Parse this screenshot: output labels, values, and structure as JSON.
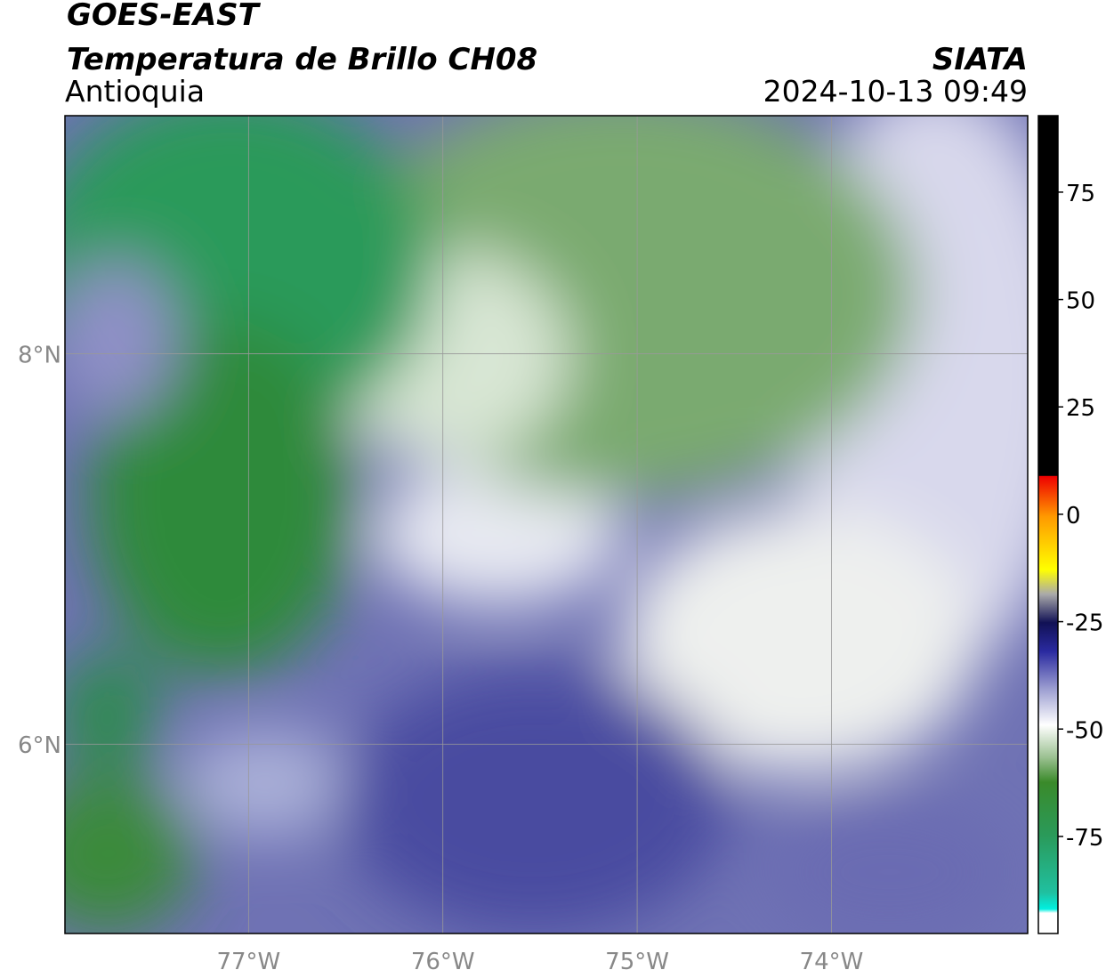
{
  "header": {
    "title": "GOES-EAST",
    "subtitle": "Temperatura de Brillo CH08",
    "region": "Antioquia",
    "source": "SIATA",
    "datetime": "2024-10-13 09:49"
  },
  "map": {
    "xlim": [
      -77.945,
      -72.99
    ],
    "ylim": [
      5.03,
      9.22
    ],
    "xticks": [
      {
        "value": -77,
        "label": "77°W"
      },
      {
        "value": -76,
        "label": "76°W"
      },
      {
        "value": -75,
        "label": "75°W"
      },
      {
        "value": -74,
        "label": "74°W"
      }
    ],
    "yticks": [
      {
        "value": 8,
        "label": "8°N"
      },
      {
        "value": 6,
        "label": "6°N"
      }
    ]
  },
  "colorbar": {
    "lim": [
      -97.6,
      92.8
    ],
    "ticks": [
      75,
      50,
      25,
      0,
      -25,
      -50,
      -75
    ]
  }
}
